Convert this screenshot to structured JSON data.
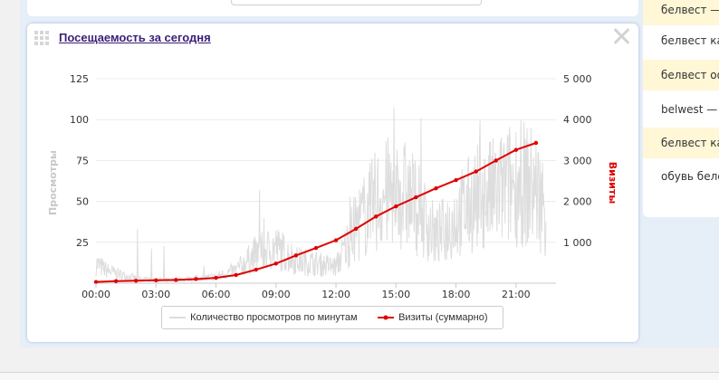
{
  "widget": {
    "title": "Посещаемость за сегодня"
  },
  "right_panel": {
    "items": [
      {
        "label": "белвест — ",
        "highlighted": true
      },
      {
        "label": "белвест ка",
        "highlighted": false
      },
      {
        "label": "белвест оф",
        "highlighted": true
      },
      {
        "label": "belwest — ",
        "highlighted": false
      },
      {
        "label": "белвест ка",
        "highlighted": true
      },
      {
        "label": "обувь беле",
        "highlighted": false
      }
    ]
  },
  "chart_data": {
    "type": "line",
    "title": "",
    "xlabel": "",
    "ylabel_left": "Просмотры",
    "ylabel_right": "Визиты",
    "x_ticks": [
      "00:00",
      "03:00",
      "06:00",
      "09:00",
      "12:00",
      "15:00",
      "18:00",
      "21:00"
    ],
    "x_range_hours": [
      0,
      23
    ],
    "y_left": {
      "min": 0,
      "max": 125,
      "ticks": [
        25,
        50,
        75,
        100,
        125
      ],
      "tick_labels": [
        "25",
        "50",
        "75",
        "100",
        "125"
      ]
    },
    "y_right": {
      "min": 0,
      "max": 5000,
      "ticks": [
        1000,
        2000,
        3000,
        4000,
        5000
      ],
      "tick_labels": [
        "1 000",
        "2 000",
        "3 000",
        "4 000",
        "5 000"
      ]
    },
    "grid": true,
    "legend_position": "bottom",
    "series": [
      {
        "name": "Количество просмотров по минутам",
        "axis": "left",
        "color": "#dddddd",
        "style": "noisy-per-minute",
        "profile_x": [
          0,
          0.5,
          1,
          2,
          3,
          4,
          5,
          6,
          7,
          8,
          9,
          10,
          11,
          12,
          13,
          14,
          15,
          16,
          17,
          18,
          19,
          20,
          21,
          22,
          22.5
        ],
        "profile_y": [
          12,
          8,
          6,
          3,
          2,
          2,
          3,
          4,
          8,
          18,
          22,
          14,
          12,
          10,
          35,
          50,
          58,
          48,
          28,
          40,
          52,
          55,
          62,
          58,
          45
        ]
      },
      {
        "name": "Визиты (суммарно)",
        "axis": "right",
        "color": "#e00000",
        "x": [
          0,
          1,
          2,
          3,
          4,
          5,
          6,
          7,
          8,
          9,
          10,
          11,
          12,
          13,
          14,
          15,
          16,
          17,
          18,
          19,
          20,
          21,
          22
        ],
        "y": [
          30,
          50,
          60,
          70,
          80,
          100,
          130,
          200,
          330,
          480,
          680,
          860,
          1050,
          1330,
          1630,
          1880,
          2100,
          2320,
          2520,
          2730,
          3000,
          3260,
          3430
        ]
      }
    ]
  }
}
